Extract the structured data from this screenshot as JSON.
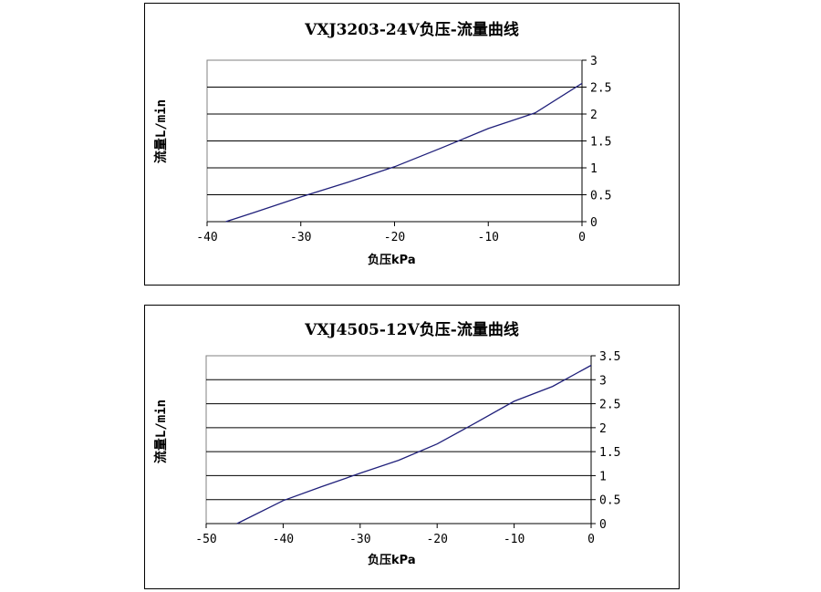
{
  "chart_data": [
    {
      "type": "line",
      "title": "VXJ3203-24V负压-流量曲线",
      "xlabel": "负压kPa",
      "ylabel": "流量L/min",
      "xlim": [
        -40,
        0
      ],
      "ylim": [
        0,
        3
      ],
      "xticks": [
        "-40",
        "-30",
        "-20",
        "-10",
        "0"
      ],
      "yticks": [
        "0",
        "0.5",
        "1",
        "1.5",
        "2",
        "2.5",
        "3"
      ],
      "y_axis_position": "right",
      "grid": "horizontal",
      "line_color": "#1f1f7a",
      "series": [
        {
          "x": [
            -38,
            -35,
            -30,
            -25,
            -20,
            -15,
            -10,
            -5,
            0
          ],
          "y": [
            0,
            0.17,
            0.46,
            0.73,
            1.02,
            1.37,
            1.73,
            2.02,
            2.57
          ]
        }
      ]
    },
    {
      "type": "line",
      "title": "VXJ4505-12V负压-流量曲线",
      "xlabel": "负压kPa",
      "ylabel": "流量L/min",
      "xlim": [
        -50,
        0
      ],
      "ylim": [
        0,
        3.5
      ],
      "xticks": [
        "-50",
        "-40",
        "-30",
        "-20",
        "-10",
        "0"
      ],
      "yticks": [
        "0",
        "0.5",
        "1",
        "1.5",
        "2",
        "2.5",
        "3",
        "3.5"
      ],
      "y_axis_position": "right",
      "grid": "horizontal",
      "line_color": "#1f1f7a",
      "series": [
        {
          "x": [
            -46,
            -40,
            -35,
            -30,
            -25,
            -20,
            -15,
            -10,
            -5,
            0
          ],
          "y": [
            0,
            0.48,
            0.77,
            1.05,
            1.32,
            1.66,
            2.1,
            2.55,
            2.86,
            3.3
          ]
        }
      ]
    }
  ]
}
